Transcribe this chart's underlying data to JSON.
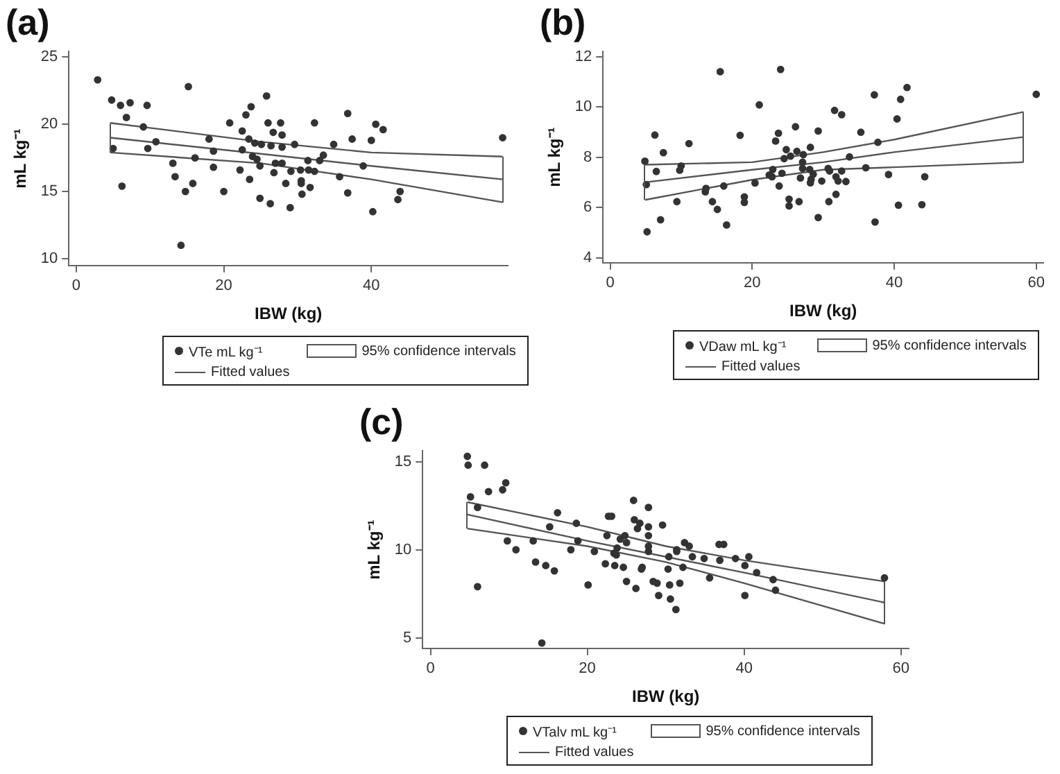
{
  "chart_data": [
    {
      "type": "scatter",
      "title": "(a)",
      "xlabel": "IBW (kg)",
      "ylabel": "mL kg⁻¹",
      "xlim": [
        -1,
        58.5
      ],
      "ylim": [
        9.5,
        25.4
      ],
      "xticks": [
        0,
        20,
        40
      ],
      "yticks": [
        10,
        15,
        20,
        25
      ],
      "grid": false,
      "legend": "bottom",
      "series": [
        {
          "name": "VTe mL kg⁻¹",
          "color": "#333333",
          "marker": "circle",
          "x": [
            2.9,
            4.8,
            5.0,
            6.0,
            6.2,
            6.8,
            7.3,
            9.1,
            9.6,
            9.7,
            10.8,
            13.1,
            13.4,
            14.2,
            14.8,
            15.2,
            15.8,
            16.1,
            18.0,
            18.6,
            18.6,
            20.0,
            20.8,
            22.2,
            22.5,
            22.5,
            23.0,
            23.4,
            23.5,
            23.7,
            23.9,
            24.2,
            24.5,
            24.9,
            24.9,
            25.1,
            25.8,
            26.0,
            26.3,
            26.4,
            26.7,
            26.8,
            27.0,
            27.7,
            27.9,
            27.9,
            27.9,
            28.4,
            29.0,
            29.1,
            29.6,
            30.4,
            30.5,
            30.5,
            30.6,
            31.4,
            31.5,
            31.7,
            32.3,
            32.3,
            33.0,
            33.5,
            34.9,
            35.7,
            36.8,
            36.8,
            37.4,
            38.9,
            40.0,
            40.2,
            40.6,
            41.6,
            43.6,
            43.9,
            57.8
          ],
          "values": [
            23.3,
            21.8,
            18.2,
            21.4,
            15.4,
            20.5,
            21.6,
            19.8,
            21.4,
            18.2,
            18.7,
            17.1,
            16.1,
            11.0,
            15.0,
            22.8,
            15.6,
            17.5,
            18.9,
            18.0,
            16.8,
            15.0,
            20.1,
            16.6,
            18.1,
            19.5,
            20.7,
            18.9,
            15.9,
            21.3,
            17.6,
            18.6,
            17.4,
            16.9,
            14.5,
            18.5,
            22.1,
            20.1,
            14.1,
            18.4,
            19.4,
            16.4,
            17.1,
            20.1,
            19.2,
            18.3,
            17.1,
            15.6,
            13.8,
            16.5,
            18.5,
            16.6,
            15.8,
            15.6,
            14.8,
            17.3,
            16.6,
            15.3,
            20.1,
            16.5,
            17.3,
            17.7,
            18.5,
            16.1,
            20.8,
            14.9,
            18.9,
            16.9,
            18.8,
            13.5,
            20.0,
            19.6,
            14.4,
            15.0,
            19.0
          ]
        },
        {
          "type": "line",
          "name": "Fitted values",
          "color": "#555555",
          "marker": "none",
          "x": [
            4.6,
            25,
            40,
            57.8
          ],
          "values": [
            19.0,
            17.8,
            16.9,
            15.9
          ]
        },
        {
          "type": "line",
          "color": "#555555",
          "marker": "none",
          "x": [
            4.6,
            25,
            40,
            57.8
          ],
          "values": [
            17.9,
            17.1,
            15.9,
            14.2
          ]
        },
        {
          "type": "line",
          "color": "#555555",
          "marker": "none",
          "x": [
            4.6,
            25,
            40,
            57.8
          ],
          "values": [
            20.1,
            18.7,
            17.9,
            17.6
          ]
        }
      ],
      "annotations": [
        "95% confidence intervals"
      ]
    },
    {
      "type": "scatter",
      "title": "(b)",
      "xlabel": "IBW (kg)",
      "ylabel": "mL kg⁻¹",
      "xlim": [
        -1,
        61
      ],
      "ylim": [
        3.8,
        12.2
      ],
      "xticks": [
        0,
        20,
        40,
        60
      ],
      "yticks": [
        4,
        6,
        8,
        10,
        12
      ],
      "grid": false,
      "legend": "bottom",
      "series": [
        {
          "name": "VDaw mL kg⁻¹",
          "color": "#333333",
          "marker": "circle",
          "x": [
            4.9,
            5.1,
            5.2,
            6.3,
            6.5,
            7.1,
            7.5,
            9.4,
            9.8,
            10.0,
            11.1,
            13.4,
            13.5,
            14.4,
            15.1,
            15.5,
            16.0,
            16.4,
            18.3,
            18.9,
            18.9,
            20.4,
            21.0,
            22.4,
            22.8,
            22.9,
            23.3,
            23.7,
            23.8,
            24.0,
            24.2,
            24.5,
            24.8,
            25.2,
            25.2,
            25.4,
            26.1,
            26.3,
            26.6,
            26.8,
            27.1,
            27.2,
            27.1,
            28.1,
            28.2,
            28.2,
            28.3,
            28.6,
            29.3,
            29.3,
            29.8,
            30.8,
            30.7,
            30.9,
            31.6,
            31.8,
            31.8,
            32.1,
            32.6,
            32.6,
            33.2,
            33.7,
            35.3,
            36.0,
            37.2,
            37.3,
            37.7,
            39.2,
            40.4,
            40.6,
            40.9,
            41.8,
            43.9,
            44.3,
            60.0
          ],
          "values": [
            7.84,
            6.91,
            5.03,
            8.88,
            7.43,
            5.51,
            8.18,
            6.23,
            7.48,
            7.65,
            8.54,
            6.62,
            6.76,
            6.23,
            5.92,
            11.4,
            6.85,
            5.3,
            8.87,
            6.42,
            6.2,
            6.97,
            10.08,
            7.29,
            7.22,
            7.51,
            8.64,
            8.95,
            6.85,
            11.49,
            7.36,
            7.94,
            8.3,
            6.33,
            6.06,
            8.04,
            9.21,
            8.23,
            6.23,
            7.17,
            7.8,
            8.1,
            7.55,
            7.51,
            6.98,
            8.39,
            7.12,
            7.32,
            5.6,
            9.04,
            7.05,
            6.23,
            7.55,
            7.45,
            9.86,
            6.52,
            7.22,
            7.05,
            9.69,
            7.45,
            7.03,
            8.01,
            8.99,
            7.58,
            10.48,
            5.42,
            8.59,
            7.31,
            9.52,
            6.09,
            10.3,
            10.77,
            6.11,
            7.22,
            10.5
          ]
        },
        {
          "type": "line",
          "name": "Fitted values",
          "color": "#555555",
          "marker": "none",
          "x": [
            4.9,
            20,
            30,
            40,
            58.2
          ],
          "values": [
            7.0,
            7.5,
            7.8,
            8.2,
            8.8
          ]
        },
        {
          "type": "line",
          "color": "#555555",
          "marker": "none",
          "x": [
            4.9,
            20,
            30,
            40,
            58.2
          ],
          "values": [
            6.3,
            7.1,
            7.5,
            7.6,
            7.8
          ]
        },
        {
          "type": "line",
          "color": "#555555",
          "marker": "none",
          "x": [
            4.9,
            20,
            30,
            40,
            58.2
          ],
          "values": [
            7.7,
            7.8,
            8.2,
            8.7,
            9.8
          ]
        }
      ],
      "annotations": [
        "95% confidence intervals"
      ]
    },
    {
      "type": "scatter",
      "title": "(c)",
      "xlabel": "IBW (kg)",
      "ylabel": "mL kg⁻¹",
      "xlim": [
        -1,
        61
      ],
      "ylim": [
        4.4,
        15.6
      ],
      "xticks": [
        0,
        20,
        40,
        60
      ],
      "yticks": [
        5,
        10,
        15
      ],
      "grid": false,
      "legend": "bottom",
      "series": [
        {
          "name": "VTalv mL kg⁻¹",
          "color": "#333333",
          "marker": "circle",
          "x": [
            4.7,
            4.8,
            5.1,
            6.0,
            6.0,
            6.9,
            7.4,
            9.2,
            9.6,
            9.8,
            10.9,
            13.1,
            13.4,
            14.7,
            15.2,
            15.8,
            16.2,
            17.9,
            18.6,
            18.8,
            20.1,
            20.9,
            22.3,
            22.5,
            22.7,
            23.1,
            23.4,
            23.5,
            23.7,
            23.8,
            24.2,
            24.6,
            24.8,
            25.0,
            25.0,
            25.9,
            26.0,
            26.2,
            26.4,
            26.7,
            26.9,
            27.0,
            27.8,
            27.8,
            27.8,
            27.8,
            27.8,
            28.4,
            28.9,
            29.1,
            29.6,
            30.3,
            30.4,
            30.5,
            30.6,
            31.3,
            31.4,
            31.4,
            31.8,
            32.2,
            32.4,
            33.0,
            33.4,
            34.9,
            35.6,
            36.8,
            36.9,
            37.4,
            38.9,
            40.1,
            40.1,
            40.6,
            41.6,
            43.7,
            44.0,
            14.2,
            57.9
          ],
          "values": [
            15.3,
            14.8,
            13.0,
            7.9,
            12.4,
            14.8,
            13.3,
            13.4,
            13.8,
            10.5,
            10.0,
            10.5,
            9.3,
            9.1,
            11.3,
            8.8,
            12.1,
            10.0,
            11.5,
            10.5,
            8.0,
            9.9,
            9.2,
            10.8,
            11.9,
            11.9,
            9.8,
            9.1,
            9.7,
            10.1,
            10.6,
            9.0,
            10.8,
            10.4,
            8.2,
            12.8,
            11.7,
            7.8,
            11.2,
            11.5,
            8.9,
            9.0,
            12.4,
            11.3,
            10.8,
            10.2,
            9.9,
            8.2,
            8.1,
            7.4,
            11.4,
            8.9,
            9.6,
            8.0,
            7.2,
            6.6,
            9.9,
            10.0,
            8.1,
            9.0,
            10.4,
            10.2,
            9.6,
            9.5,
            8.4,
            10.3,
            9.4,
            10.3,
            9.5,
            9.1,
            7.4,
            9.6,
            8.7,
            8.3,
            7.7,
            4.7,
            8.4
          ]
        },
        {
          "type": "line",
          "name": "Fitted values",
          "color": "#555555",
          "marker": "none",
          "x": [
            4.7,
            20,
            30,
            40,
            57.9
          ],
          "values": [
            12.0,
            10.5,
            9.6,
            8.7,
            7.0
          ]
        },
        {
          "type": "line",
          "color": "#555555",
          "marker": "none",
          "x": [
            4.7,
            20,
            30,
            40,
            57.9
          ],
          "values": [
            11.2,
            10.2,
            9.3,
            8.1,
            5.8
          ]
        },
        {
          "type": "line",
          "color": "#555555",
          "marker": "none",
          "x": [
            4.7,
            20,
            30,
            40,
            57.9
          ],
          "values": [
            12.7,
            11.3,
            10.2,
            9.4,
            8.2
          ]
        }
      ],
      "annotations": [
        "95% confidence intervals"
      ]
    }
  ]
}
